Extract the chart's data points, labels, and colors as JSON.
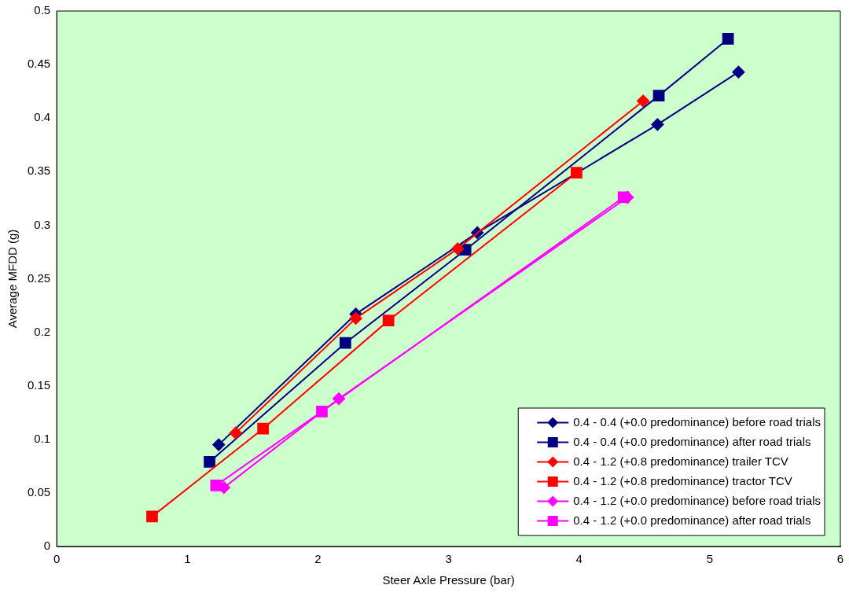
{
  "chart_data": {
    "type": "line",
    "xlabel": "Steer Axle Pressure (bar)",
    "ylabel": "Average MFDD (g)",
    "xlim": [
      0,
      6
    ],
    "xticks": [
      0,
      1,
      2,
      3,
      4,
      5,
      6
    ],
    "ylim": [
      0,
      0.5
    ],
    "yticks": [
      0,
      0.05,
      0.1,
      0.15,
      0.2,
      0.25,
      0.3,
      0.35,
      0.4,
      0.45,
      0.5
    ],
    "grid": false,
    "legend": "bottom right",
    "line_style": "solid",
    "series": [
      {
        "name": "0.4 - 0.4 (+0.0 predominance) before road trials",
        "color": "#000080",
        "marker": "diamond",
        "x": [
          1.24,
          2.29,
          3.22,
          4.6,
          5.22
        ],
        "values": [
          0.095,
          0.217,
          0.293,
          0.394,
          0.443
        ]
      },
      {
        "name": "0.4 - 0.4 (+0.0 predominance) after road trials",
        "color": "#000080",
        "marker": "square",
        "x": [
          1.17,
          2.21,
          3.13,
          4.61,
          5.14
        ],
        "values": [
          0.079,
          0.19,
          0.277,
          0.421,
          0.474
        ]
      },
      {
        "name": "0.4 - 1.2 (+0.8 predominance) trailer TCV",
        "color": "#ff0000",
        "marker": "diamond",
        "x": [
          1.37,
          2.29,
          3.07,
          4.49
        ],
        "values": [
          0.106,
          0.213,
          0.278,
          0.416
        ]
      },
      {
        "name": "0.4 - 1.2 (+0.8 predominance) tractor TCV",
        "color": "#ff0000",
        "marker": "square",
        "x": [
          0.73,
          1.58,
          2.54,
          3.98
        ],
        "values": [
          0.028,
          0.11,
          0.211,
          0.349
        ]
      },
      {
        "name": "0.4 - 1.2 (+0.0 predominance) before road trials",
        "color": "#ff00ff",
        "marker": "diamond",
        "x": [
          1.28,
          2.16,
          4.37
        ],
        "values": [
          0.055,
          0.138,
          0.326
        ]
      },
      {
        "name": "0.4 - 1.2 (+0.0 predominance) after road trials",
        "color": "#ff00ff",
        "marker": "square",
        "x": [
          1.22,
          2.03,
          4.34
        ],
        "values": [
          0.057,
          0.126,
          0.326
        ]
      }
    ]
  }
}
